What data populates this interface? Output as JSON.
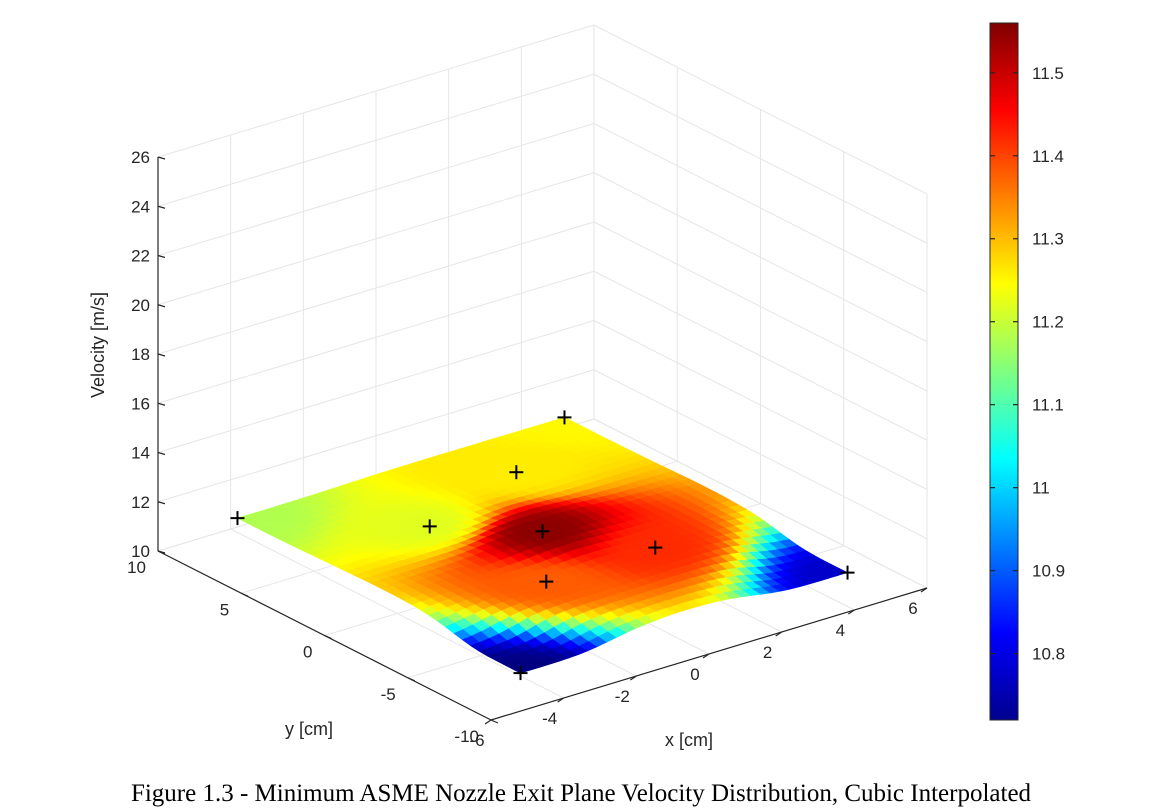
{
  "caption": "Figure 1.3 - Minimum ASME Nozzle Exit Plane Velocity Distribution, Cubic Interpolated",
  "chart_data": {
    "type": "surface3d",
    "zlabel": "Velocity [m/s]",
    "xlabel": "x [cm]",
    "ylabel": "y [cm]",
    "xlim": [
      -6,
      6
    ],
    "ylim": [
      -10,
      10
    ],
    "zlim": [
      10,
      26
    ],
    "x_ticks": [
      "-6",
      "-4",
      "-2",
      "0",
      "2",
      "4",
      "6"
    ],
    "y_ticks": [
      "-10",
      "-5",
      "0",
      "5",
      "10"
    ],
    "z_ticks": [
      "10",
      "12",
      "14",
      "16",
      "18",
      "20",
      "22",
      "24",
      "26"
    ],
    "colorbar": {
      "colormap": "jet",
      "range": [
        10.72,
        11.56
      ],
      "ticks": [
        "10.8",
        "10.9",
        "11",
        "11.1",
        "11.2",
        "11.3",
        "11.4",
        "11.5"
      ]
    },
    "measurement_points": [
      {
        "x": -4.5,
        "y": -8.5,
        "v": 10.72
      },
      {
        "x": 4.5,
        "y": -8.5,
        "v": 10.78
      },
      {
        "x": 4.5,
        "y": 8.5,
        "v": 11.25
      },
      {
        "x": -4.5,
        "y": 8.5,
        "v": 11.18
      },
      {
        "x": -1.5,
        "y": 3.5,
        "v": 11.22
      },
      {
        "x": 0,
        "y": 0,
        "v": 11.55
      },
      {
        "x": 1.5,
        "y": -3.5,
        "v": 11.42
      },
      {
        "x": -1.5,
        "y": -3.5,
        "v": 11.38
      },
      {
        "x": 1.8,
        "y": 5.5,
        "v": 11.26
      }
    ]
  }
}
